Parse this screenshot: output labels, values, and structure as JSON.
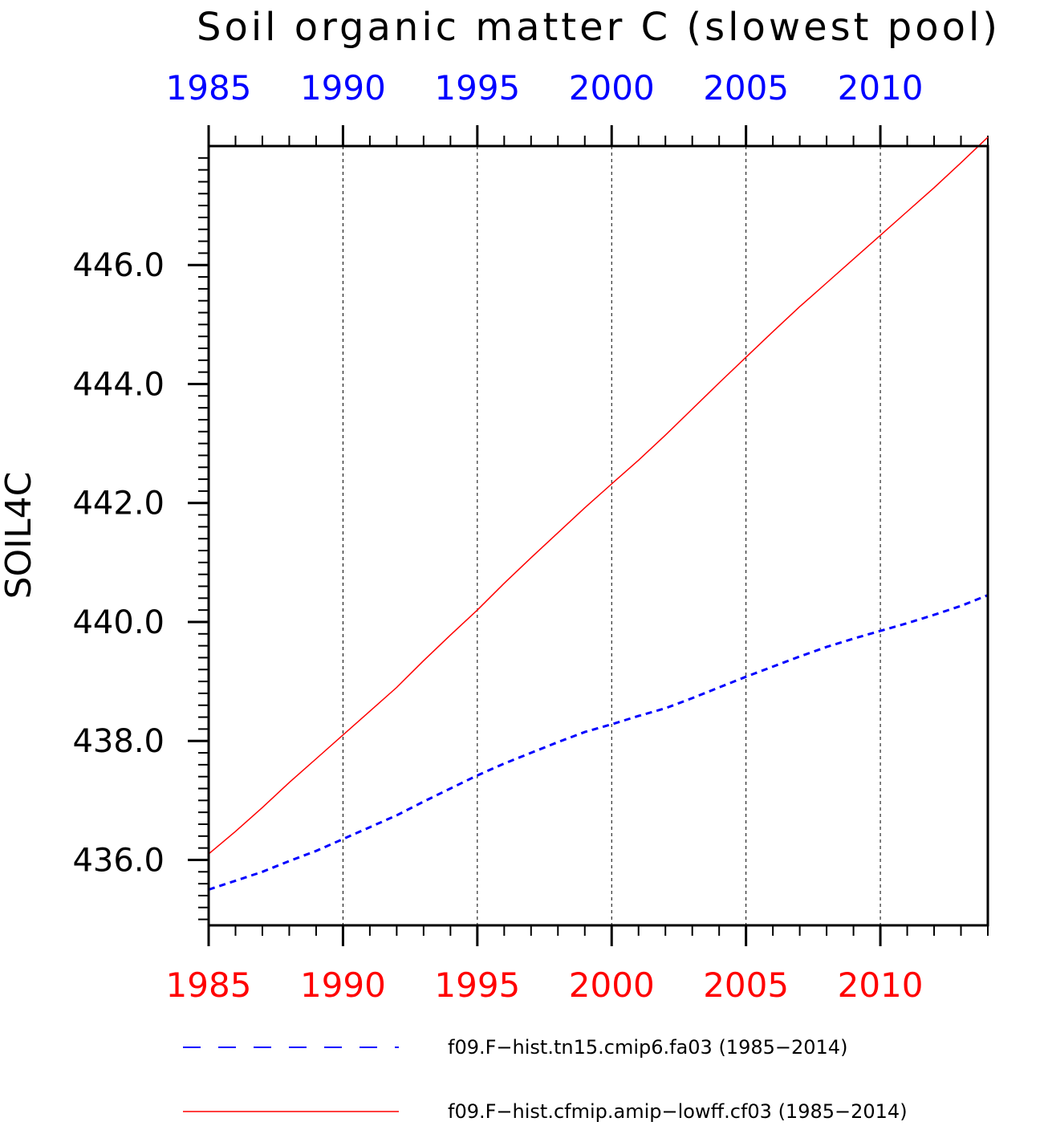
{
  "chart_data": {
    "type": "line",
    "title": "Soil organic matter C (slowest pool)",
    "ylabel": "SOIL4C",
    "xlim": [
      1985,
      2014
    ],
    "ylim": [
      434.9,
      448.0
    ],
    "x_ticks": [
      "1985",
      "1990",
      "1995",
      "2000",
      "2005",
      "2010"
    ],
    "y_ticks": [
      "436.0",
      "438.0",
      "440.0",
      "442.0",
      "444.0",
      "446.0"
    ],
    "top_axis_color": "#0000ff",
    "bottom_axis_color": "#ff0000",
    "grid": "vertical dashed at major x ticks",
    "legend_position": "bottom",
    "series": [
      {
        "name": "f09.F−hist.tn15.cmip6.fa03 (1985−2014)",
        "color": "#0000ff",
        "style": "dashed",
        "x": [
          1985,
          1986,
          1987,
          1988,
          1989,
          1990,
          1991,
          1992,
          1993,
          1994,
          1995,
          1996,
          1997,
          1998,
          1999,
          2000,
          2001,
          2002,
          2003,
          2004,
          2005,
          2006,
          2007,
          2008,
          2009,
          2010,
          2011,
          2012,
          2013,
          2014
        ],
        "values": [
          435.5,
          435.65,
          435.8,
          435.98,
          436.15,
          436.35,
          436.55,
          436.75,
          436.98,
          437.2,
          437.42,
          437.62,
          437.8,
          437.98,
          438.15,
          438.28,
          438.42,
          438.55,
          438.72,
          438.9,
          439.08,
          439.25,
          439.42,
          439.58,
          439.72,
          439.85,
          439.98,
          440.12,
          440.27,
          440.45
        ]
      },
      {
        "name": "f09.F−hist.cfmip.amip−lowff.cf03 (1985−2014)",
        "color": "#ff0000",
        "style": "solid",
        "x": [
          1985,
          1986,
          1987,
          1988,
          1989,
          1990,
          1991,
          1992,
          1993,
          1994,
          1995,
          1996,
          1997,
          1998,
          1999,
          2000,
          2001,
          2002,
          2003,
          2004,
          2005,
          2006,
          2007,
          2008,
          2009,
          2010,
          2011,
          2012,
          2013,
          2014
        ],
        "values": [
          436.1,
          436.48,
          436.88,
          437.3,
          437.7,
          438.1,
          438.5,
          438.9,
          439.35,
          439.78,
          440.2,
          440.65,
          441.08,
          441.5,
          441.92,
          442.32,
          442.72,
          443.14,
          443.58,
          444.02,
          444.45,
          444.88,
          445.3,
          445.7,
          446.1,
          446.5,
          446.9,
          447.3,
          447.72,
          448.15
        ]
      }
    ]
  }
}
